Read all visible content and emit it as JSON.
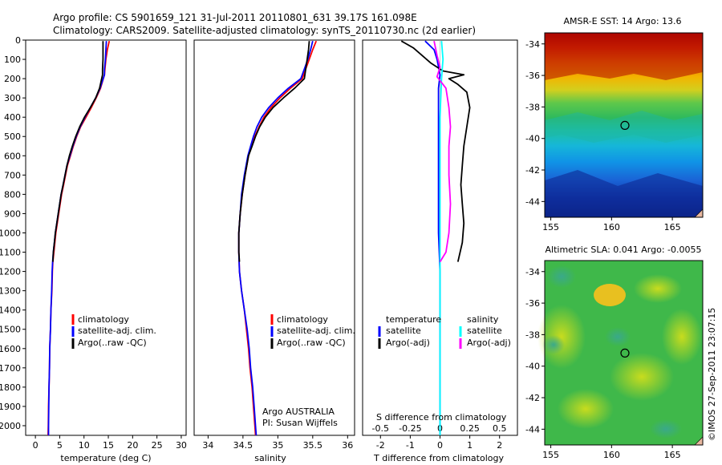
{
  "header": {
    "line1": "Argo profile: CS 5901659_121 31-Jul-2011 20110801_631 39.17S 161.098E",
    "line2": "Climatology: CARS2009. Satellite-adjusted climatology: synTS_20110730.nc (2d earlier)"
  },
  "side_text": "©IMOS 27-Sep-2011 23:07:15",
  "chart_data": [
    {
      "type": "line",
      "panel": "temperature",
      "xlabel": "temperature (deg C)",
      "ylim": [
        2050,
        0
      ],
      "xlim": [
        -2,
        31
      ],
      "xticks": [
        "0",
        "5",
        "10",
        "15",
        "20",
        "25",
        "30"
      ],
      "yticks": [
        "0",
        "100",
        "200",
        "300",
        "400",
        "500",
        "600",
        "700",
        "800",
        "900",
        "1000",
        "1100",
        "1200",
        "1300",
        "1400",
        "1500",
        "1600",
        "1700",
        "1800",
        "1900",
        "2000"
      ],
      "legend": [
        "climatology",
        "satellite-adj. clim.",
        "Argo(..raw -QC)"
      ],
      "series": [
        {
          "name": "climatology",
          "color": "#ff0000",
          "points": [
            [
              15.2,
              5
            ],
            [
              14.8,
              50
            ],
            [
              14.5,
              100
            ],
            [
              14.3,
              150
            ],
            [
              14.2,
              180
            ],
            [
              13.4,
              250
            ],
            [
              12.5,
              300
            ],
            [
              11.5,
              350
            ],
            [
              10.4,
              400
            ],
            [
              9.3,
              450
            ],
            [
              8.5,
              500
            ],
            [
              7.8,
              550
            ],
            [
              7.2,
              600
            ],
            [
              6.6,
              650
            ],
            [
              6.2,
              700
            ],
            [
              5.8,
              750
            ],
            [
              5.4,
              800
            ],
            [
              5.1,
              850
            ],
            [
              4.8,
              900
            ],
            [
              4.5,
              950
            ],
            [
              4.2,
              1000
            ],
            [
              4.0,
              1050
            ],
            [
              3.8,
              1100
            ],
            [
              3.6,
              1150
            ],
            [
              3.5,
              1200
            ],
            [
              3.4,
              1300
            ],
            [
              3.2,
              1400
            ],
            [
              3.1,
              1500
            ],
            [
              2.95,
              1600
            ],
            [
              2.9,
              1700
            ],
            [
              2.8,
              1800
            ],
            [
              2.7,
              1900
            ],
            [
              2.65,
              2000
            ],
            [
              2.6,
              2050
            ]
          ]
        },
        {
          "name": "satellite-adj. clim.",
          "color": "#0000ff",
          "points": [
            [
              14.6,
              5
            ],
            [
              14.5,
              50
            ],
            [
              14.4,
              100
            ],
            [
              14.2,
              150
            ],
            [
              14.2,
              180
            ],
            [
              13.3,
              250
            ],
            [
              12.4,
              300
            ],
            [
              11.3,
              350
            ],
            [
              10.2,
              400
            ],
            [
              9.2,
              450
            ],
            [
              8.4,
              500
            ],
            [
              7.7,
              550
            ],
            [
              7.1,
              600
            ],
            [
              6.5,
              650
            ],
            [
              6.1,
              700
            ],
            [
              5.7,
              750
            ],
            [
              5.3,
              800
            ],
            [
              5.0,
              850
            ],
            [
              4.7,
              900
            ],
            [
              4.4,
              950
            ],
            [
              4.1,
              1000
            ],
            [
              3.9,
              1050
            ],
            [
              3.7,
              1100
            ],
            [
              3.55,
              1150
            ],
            [
              3.45,
              1200
            ],
            [
              3.35,
              1300
            ],
            [
              3.2,
              1400
            ],
            [
              3.1,
              1500
            ],
            [
              2.95,
              1600
            ],
            [
              2.9,
              1700
            ],
            [
              2.8,
              1800
            ],
            [
              2.75,
              1900
            ],
            [
              2.7,
              2000
            ],
            [
              2.7,
              2050
            ]
          ]
        },
        {
          "name": "Argo(..raw -QC)",
          "color": "#000000",
          "points": [
            [
              13.9,
              5
            ],
            [
              13.9,
              50
            ],
            [
              13.9,
              100
            ],
            [
              13.8,
              150
            ],
            [
              13.8,
              180
            ],
            [
              13.2,
              250
            ],
            [
              12.4,
              300
            ],
            [
              11.3,
              350
            ],
            [
              10.1,
              400
            ],
            [
              9.1,
              450
            ],
            [
              8.3,
              500
            ],
            [
              7.6,
              550
            ],
            [
              7.0,
              600
            ],
            [
              6.5,
              650
            ],
            [
              6.1,
              700
            ],
            [
              5.7,
              750
            ],
            [
              5.3,
              800
            ],
            [
              5.0,
              850
            ],
            [
              4.7,
              900
            ],
            [
              4.4,
              950
            ],
            [
              4.1,
              1000
            ],
            [
              3.9,
              1050
            ],
            [
              3.7,
              1100
            ],
            [
              3.6,
              1150
            ]
          ]
        }
      ]
    },
    {
      "type": "line",
      "panel": "salinity",
      "xlabel": "salinity",
      "ylim": [
        2050,
        0
      ],
      "xlim": [
        33.8,
        36.1
      ],
      "xticks": [
        "34",
        "34.5",
        "35",
        "35.5",
        "36"
      ],
      "legend": [
        "climatology",
        "satellite-adj. clim.",
        "Argo(..raw -QC)"
      ],
      "annotation": [
        "Argo AUSTRALIA",
        "PI: Susan Wijffels"
      ],
      "series": [
        {
          "name": "climatology",
          "color": "#ff0000",
          "points": [
            [
              35.55,
              5
            ],
            [
              35.5,
              50
            ],
            [
              35.45,
              100
            ],
            [
              35.4,
              150
            ],
            [
              35.35,
              200
            ],
            [
              35.18,
              250
            ],
            [
              35.03,
              300
            ],
            [
              34.9,
              350
            ],
            [
              34.8,
              400
            ],
            [
              34.73,
              450
            ],
            [
              34.67,
              500
            ],
            [
              34.62,
              550
            ],
            [
              34.58,
              600
            ],
            [
              34.53,
              700
            ],
            [
              34.49,
              800
            ],
            [
              34.46,
              900
            ],
            [
              34.44,
              1000
            ],
            [
              34.44,
              1100
            ],
            [
              34.45,
              1200
            ],
            [
              34.48,
              1300
            ],
            [
              34.52,
              1400
            ],
            [
              34.55,
              1500
            ],
            [
              34.58,
              1600
            ],
            [
              34.6,
              1700
            ],
            [
              34.63,
              1800
            ],
            [
              34.65,
              1900
            ],
            [
              34.67,
              2000
            ],
            [
              34.68,
              2050
            ]
          ]
        },
        {
          "name": "satellite-adj. clim.",
          "color": "#0000ff",
          "points": [
            [
              35.5,
              5
            ],
            [
              35.47,
              50
            ],
            [
              35.43,
              100
            ],
            [
              35.38,
              150
            ],
            [
              35.33,
              200
            ],
            [
              35.15,
              250
            ],
            [
              35.0,
              300
            ],
            [
              34.87,
              350
            ],
            [
              34.77,
              400
            ],
            [
              34.7,
              450
            ],
            [
              34.65,
              500
            ],
            [
              34.61,
              550
            ],
            [
              34.57,
              600
            ],
            [
              34.52,
              700
            ],
            [
              34.48,
              800
            ],
            [
              34.46,
              900
            ],
            [
              34.44,
              1000
            ],
            [
              34.44,
              1100
            ],
            [
              34.45,
              1200
            ],
            [
              34.48,
              1300
            ],
            [
              34.52,
              1400
            ],
            [
              34.56,
              1500
            ],
            [
              34.59,
              1600
            ],
            [
              34.61,
              1700
            ],
            [
              34.64,
              1800
            ],
            [
              34.66,
              1900
            ],
            [
              34.68,
              2000
            ],
            [
              34.69,
              2050
            ]
          ]
        },
        {
          "name": "Argo(..raw -QC)",
          "color": "#000000",
          "points": [
            [
              35.45,
              5
            ],
            [
              35.44,
              50
            ],
            [
              35.42,
              100
            ],
            [
              35.4,
              150
            ],
            [
              35.38,
              200
            ],
            [
              35.24,
              250
            ],
            [
              35.08,
              300
            ],
            [
              34.93,
              350
            ],
            [
              34.82,
              400
            ],
            [
              34.74,
              450
            ],
            [
              34.68,
              500
            ],
            [
              34.63,
              550
            ],
            [
              34.58,
              600
            ],
            [
              34.53,
              700
            ],
            [
              34.49,
              800
            ],
            [
              34.46,
              900
            ],
            [
              34.44,
              1000
            ],
            [
              34.44,
              1100
            ],
            [
              34.45,
              1150
            ]
          ]
        }
      ]
    },
    {
      "type": "line",
      "panel": "differences",
      "xlabel": "T difference from climatology",
      "xlabel_top": "S difference from climatology",
      "ylim": [
        2050,
        0
      ],
      "xlim": [
        -2.6,
        2.6
      ],
      "xticks": [
        "-2",
        "-1",
        "0",
        "1",
        "2"
      ],
      "xticks_top": [
        "-0.5",
        "-0.25",
        "0",
        "0.25",
        "0.5"
      ],
      "legend_titles": [
        "temperature",
        "salinity"
      ],
      "legend": [
        "satellite",
        "Argo(-adj)",
        "satellite",
        "Argo(-adj)"
      ],
      "series": [
        {
          "name": "temperature satellite",
          "color": "#0000ff",
          "points": [
            [
              -0.5,
              5
            ],
            [
              -0.2,
              50
            ],
            [
              -0.1,
              100
            ],
            [
              0.0,
              180
            ],
            [
              -0.05,
              250
            ],
            [
              -0.05,
              400
            ],
            [
              -0.05,
              600
            ],
            [
              -0.05,
              800
            ],
            [
              -0.05,
              1000
            ],
            [
              0.0,
              1200
            ],
            [
              0.0,
              1500
            ],
            [
              0.0,
              1800
            ],
            [
              0.0,
              2050
            ]
          ]
        },
        {
          "name": "temperature Argo(-adj)",
          "color": "#000000",
          "points": [
            [
              -1.3,
              5
            ],
            [
              -0.9,
              40
            ],
            [
              -0.6,
              80
            ],
            [
              -0.3,
              120
            ],
            [
              0.1,
              160
            ],
            [
              0.8,
              180
            ],
            [
              0.3,
              200
            ],
            [
              0.6,
              230
            ],
            [
              0.9,
              270
            ],
            [
              1.0,
              350
            ],
            [
              0.9,
              450
            ],
            [
              0.8,
              550
            ],
            [
              0.75,
              650
            ],
            [
              0.7,
              750
            ],
            [
              0.75,
              850
            ],
            [
              0.8,
              950
            ],
            [
              0.75,
              1050
            ],
            [
              0.6,
              1150
            ]
          ]
        },
        {
          "name": "salinity satellite",
          "color": "#00ffff",
          "points": [
            [
              0.05,
              5
            ],
            [
              0.1,
              100
            ],
            [
              0.05,
              200
            ],
            [
              0.0,
              400
            ],
            [
              0.0,
              600
            ],
            [
              0.0,
              800
            ],
            [
              0.0,
              1000
            ],
            [
              0.0,
              1200
            ],
            [
              0.0,
              1500
            ],
            [
              0.0,
              1800
            ],
            [
              0.0,
              2050
            ]
          ]
        },
        {
          "name": "salinity Argo(-adj)",
          "color": "#ff00ff",
          "points": [
            [
              -0.2,
              5
            ],
            [
              -0.1,
              80
            ],
            [
              0.0,
              140
            ],
            [
              -0.1,
              190
            ],
            [
              0.2,
              250
            ],
            [
              0.3,
              350
            ],
            [
              0.35,
              450
            ],
            [
              0.3,
              550
            ],
            [
              0.3,
              700
            ],
            [
              0.35,
              850
            ],
            [
              0.3,
              1000
            ],
            [
              0.2,
              1100
            ],
            [
              0.0,
              1150
            ]
          ]
        }
      ]
    },
    {
      "type": "heatmap",
      "panel": "sst_map",
      "title": "AMSR-E SST: 14  Argo: 13.6",
      "xticks": [
        "155",
        "160",
        "165"
      ],
      "yticks": [
        "-34",
        "-36",
        "-38",
        "-40",
        "-42",
        "-44"
      ],
      "xlim": [
        154.5,
        167.5
      ],
      "ylim": [
        -45,
        -33.3
      ],
      "marker": {
        "lon": 161.1,
        "lat": -39.17
      }
    },
    {
      "type": "heatmap",
      "panel": "sla_map",
      "title": "Altimetric SLA: 0.041  Argo: -0.0055",
      "xticks": [
        "155",
        "160",
        "165"
      ],
      "yticks": [
        "-34",
        "-36",
        "-38",
        "-40",
        "-42",
        "-44"
      ],
      "xlim": [
        154.5,
        167.5
      ],
      "ylim": [
        -45,
        -33.3
      ],
      "marker": {
        "lon": 161.1,
        "lat": -39.17
      }
    }
  ]
}
